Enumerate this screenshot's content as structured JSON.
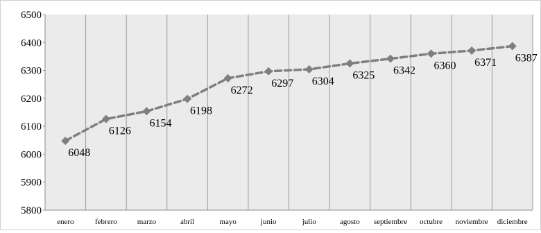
{
  "chart_data": {
    "type": "line",
    "title": "",
    "xlabel": "",
    "ylabel": "",
    "categories": [
      "enero",
      "febrero",
      "marzo",
      "abril",
      "mayo",
      "junio",
      "julio",
      "agosto",
      "septiembre",
      "octubre",
      "noviembre",
      "diciembre"
    ],
    "series": [
      {
        "values": [
          6048,
          6126,
          6154,
          6198,
          6272,
          6297,
          6304,
          6325,
          6342,
          6360,
          6371,
          6387
        ],
        "color": "#7f7f7f",
        "line_style": "dashed",
        "marker": "diamond"
      }
    ],
    "ylim": [
      5800,
      6500
    ],
    "y_ticks": [
      5800,
      5900,
      6000,
      6100,
      6200,
      6300,
      6400,
      6500
    ],
    "grid": "vertical",
    "plot_background": "#ebebeb",
    "data_labels": true,
    "legend": "none"
  }
}
